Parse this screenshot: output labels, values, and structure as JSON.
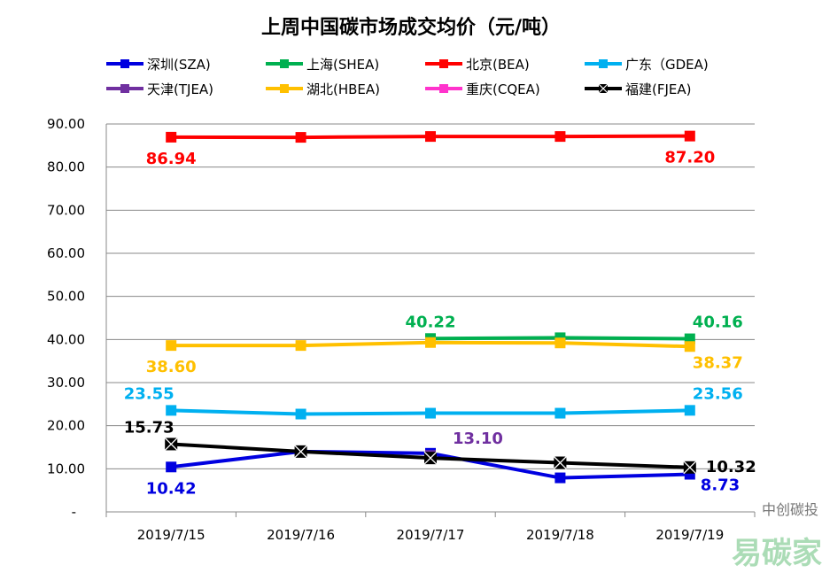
{
  "chart_data": {
    "type": "line",
    "title": "上周中国碳市场成交均价（元/吨）",
    "xlabel": "",
    "ylabel": "",
    "categories": [
      "2019/7/15",
      "2019/7/16",
      "2019/7/17",
      "2019/7/18",
      "2019/7/19"
    ],
    "ylim": [
      0,
      90
    ],
    "yticks": [
      "-",
      "10.00",
      "20.00",
      "30.00",
      "40.00",
      "50.00",
      "60.00",
      "70.00",
      "80.00",
      "90.00"
    ],
    "grid": true,
    "legend_position": "top",
    "series": [
      {
        "name": "深圳(SZA)",
        "color": "#0000e0",
        "marker": "square",
        "values": [
          10.42,
          14.0,
          13.6,
          7.9,
          8.73
        ],
        "labels": {
          "0": "10.42",
          "4": "8.73"
        },
        "labelPos": "below"
      },
      {
        "name": "上海(SHEA)",
        "color": "#00b050",
        "marker": "square",
        "values": [
          null,
          null,
          40.22,
          40.4,
          40.16
        ],
        "labels": {
          "2": "40.22",
          "4": "40.16"
        },
        "labelPos": "above"
      },
      {
        "name": "北京(BEA)",
        "color": "#ff0000",
        "marker": "square",
        "values": [
          86.94,
          86.9,
          87.1,
          87.1,
          87.2
        ],
        "labels": {
          "0": "86.94",
          "4": "87.20"
        },
        "labelPos": "below"
      },
      {
        "name": "广东（GDEA)",
        "color": "#00b0f0",
        "marker": "square",
        "values": [
          23.55,
          22.7,
          22.9,
          22.9,
          23.56
        ],
        "labels": {
          "0": "23.55",
          "4": "23.56"
        },
        "labelPos": "above"
      },
      {
        "name": "天津(TJEA)",
        "color": "#7030a0",
        "marker": "square",
        "values": [
          null,
          null,
          13.1,
          null,
          null
        ],
        "labels": {
          "2": "13.10"
        },
        "labelPos": "right"
      },
      {
        "name": "湖北(HBEA)",
        "color": "#ffc000",
        "marker": "square",
        "values": [
          38.6,
          38.6,
          39.3,
          39.2,
          38.37
        ],
        "labels": {
          "0": "38.60",
          "4": "38.37"
        },
        "labelPos": "below"
      },
      {
        "name": "重庆(CQEA)",
        "color": "#ff33cc",
        "marker": "square",
        "values": [
          null,
          null,
          null,
          null,
          null
        ],
        "labels": {},
        "labelPos": "above"
      },
      {
        "name": "福建(FJEA)",
        "color": "#000000",
        "marker": "x-square",
        "values": [
          15.73,
          14.0,
          12.5,
          11.4,
          10.32
        ],
        "labels": {
          "0": "15.73",
          "4": "10.32"
        },
        "labelPos": "above"
      }
    ]
  },
  "watermark": {
    "brand": "易碳家",
    "source": "中创碳投"
  }
}
